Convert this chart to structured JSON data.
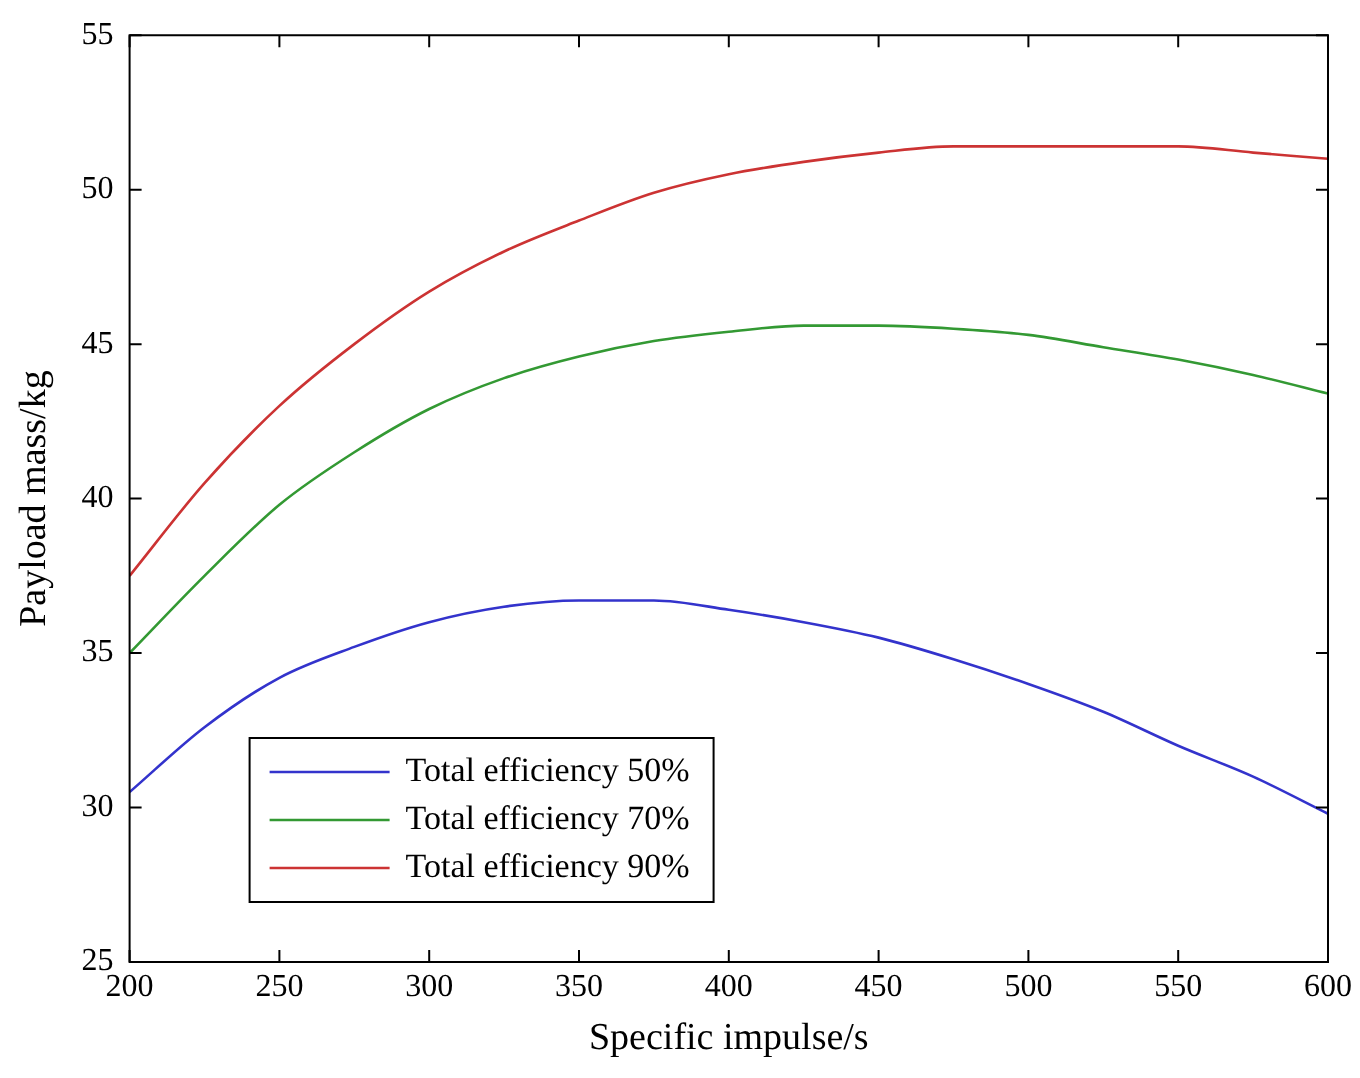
{
  "chart_data": {
    "type": "line",
    "xlabel": "Specific impulse/s",
    "ylabel": "Payload mass/kg",
    "x": [
      200,
      225,
      250,
      275,
      300,
      325,
      350,
      375,
      400,
      425,
      450,
      475,
      500,
      525,
      550,
      575,
      600
    ],
    "series": [
      {
        "name": "Total efficiency 50%",
        "color": "#3333cc",
        "values": [
          30.5,
          32.6,
          34.2,
          35.2,
          36.0,
          36.5,
          36.7,
          36.7,
          36.4,
          36.0,
          35.5,
          34.8,
          34.0,
          33.1,
          32.0,
          31.0,
          29.8
        ]
      },
      {
        "name": "Total efficiency 70%",
        "color": "#339933",
        "values": [
          35.0,
          37.5,
          39.8,
          41.5,
          42.9,
          43.9,
          44.6,
          45.1,
          45.4,
          45.6,
          45.6,
          45.5,
          45.3,
          44.9,
          44.5,
          44.0,
          43.4
        ]
      },
      {
        "name": "Total efficiency 90%",
        "color": "#cc3333",
        "values": [
          37.5,
          40.5,
          43.0,
          45.0,
          46.7,
          48.0,
          49.0,
          49.9,
          50.5,
          50.9,
          51.2,
          51.4,
          51.4,
          51.4,
          51.4,
          51.2,
          51.0
        ]
      }
    ],
    "xlim": [
      200,
      600
    ],
    "xticks": [
      200,
      250,
      300,
      350,
      400,
      450,
      500,
      550,
      600
    ],
    "ylim": [
      25,
      55
    ],
    "yticks": [
      25,
      30,
      35,
      40,
      45,
      50,
      55
    ],
    "grid": false,
    "legend": "bottom left",
    "marker": "none",
    "line_style": "solid"
  }
}
